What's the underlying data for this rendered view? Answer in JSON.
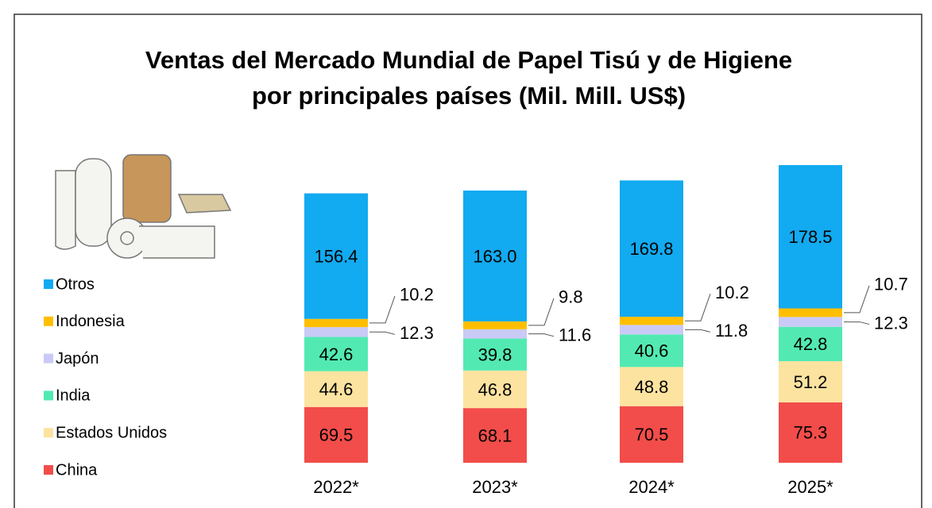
{
  "chart_data": {
    "type": "stacked-bar",
    "title": [
      "Ventas del Mercado Mundial de Papel Tisú y de Higiene",
      "por principales países (Mil. Mill. US$)"
    ],
    "categories": [
      "2022*",
      "2023*",
      "2024*",
      "2025*"
    ],
    "series": [
      {
        "name": "China",
        "color": "#f24d4a",
        "values": [
          69.5,
          68.1,
          70.5,
          75.3
        ]
      },
      {
        "name": "Estados Unidos",
        "color": "#fde3a0",
        "values": [
          44.6,
          46.8,
          48.8,
          51.2
        ]
      },
      {
        "name": "India",
        "color": "#52eab2",
        "values": [
          42.6,
          39.8,
          40.6,
          42.8
        ]
      },
      {
        "name": "Japón",
        "color": "#cacaf6",
        "values": [
          12.3,
          11.6,
          11.8,
          12.3
        ]
      },
      {
        "name": "Indonesia",
        "color": "#ffbf00",
        "values": [
          10.2,
          9.8,
          10.2,
          10.7
        ]
      },
      {
        "name": "Otros",
        "color": "#12aaf0",
        "values": [
          156.4,
          163.0,
          169.8,
          178.5
        ]
      }
    ],
    "value_labels": {
      "5": [
        "156.4",
        "163.0",
        "169.8",
        "178.5"
      ]
    },
    "legend": "left"
  }
}
